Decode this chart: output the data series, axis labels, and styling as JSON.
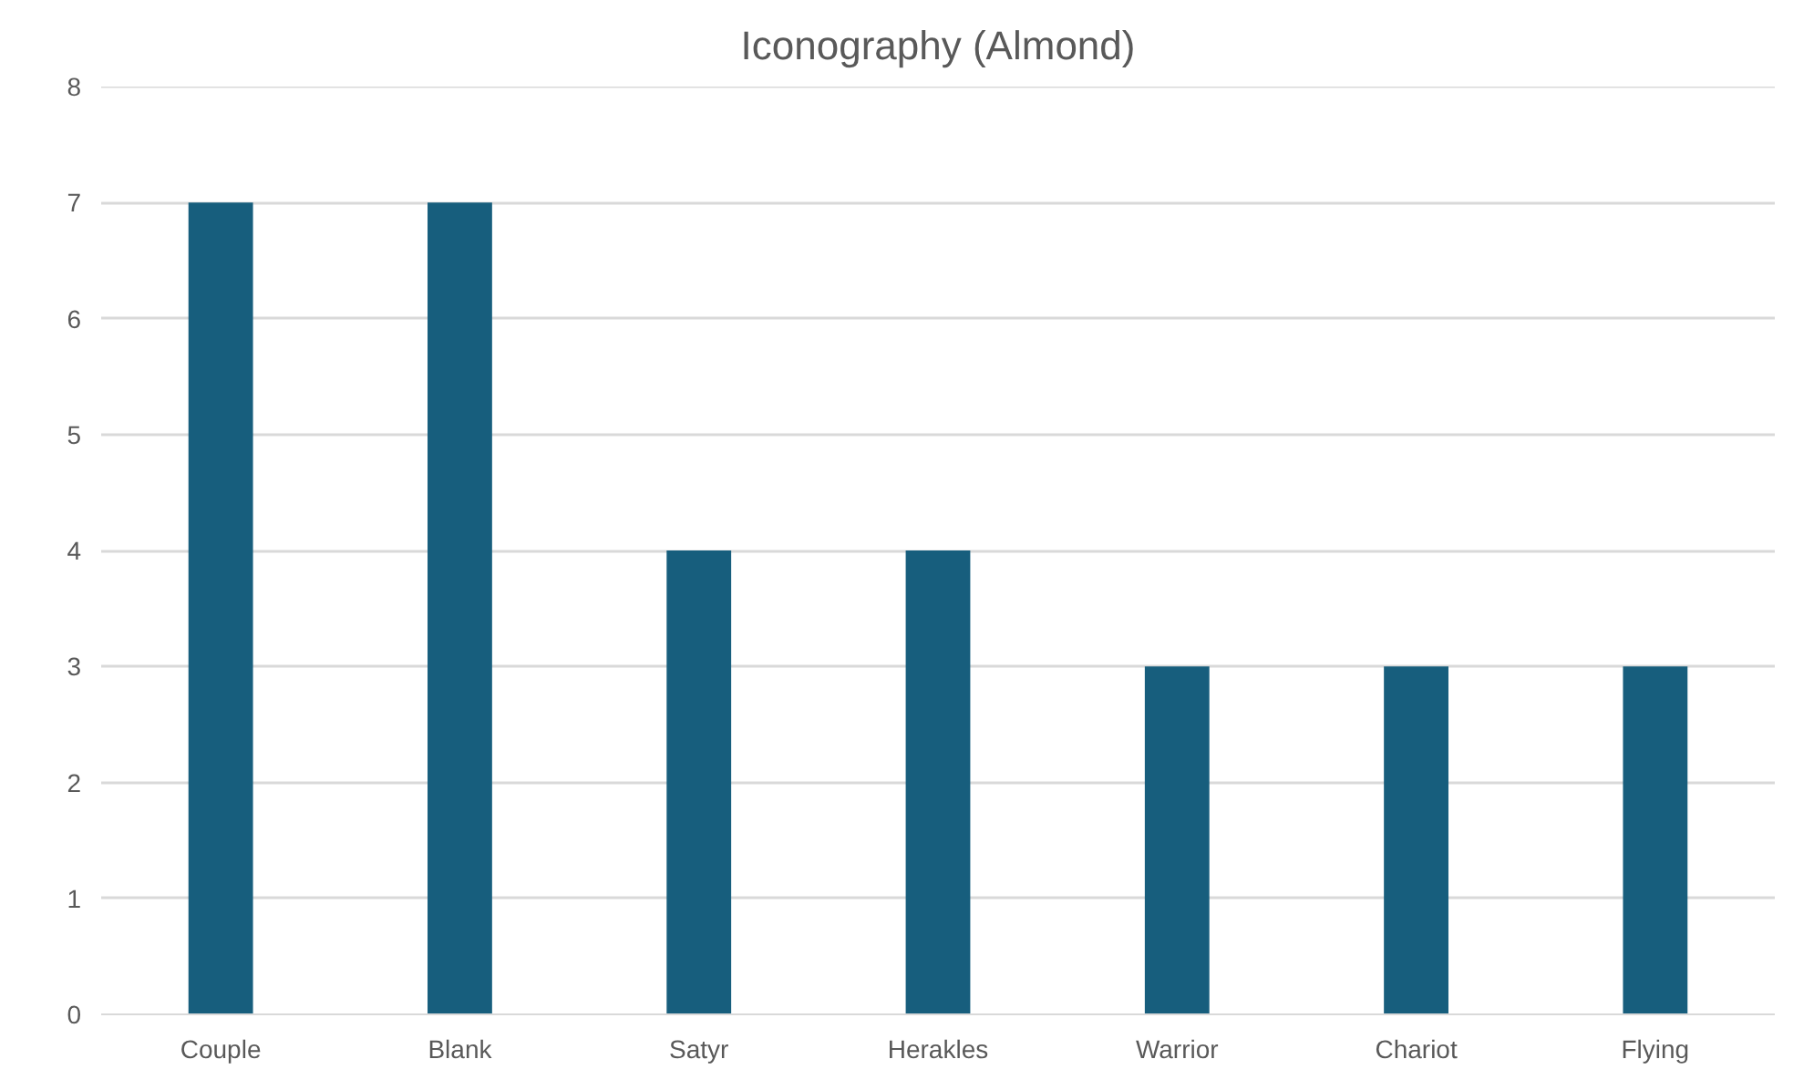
{
  "chart_data": {
    "type": "bar",
    "title": "Iconography (Almond)",
    "categories": [
      "Couple",
      "Blank",
      "Satyr",
      "Herakles",
      "Warrior",
      "Chariot",
      "Flying"
    ],
    "values": [
      7,
      7,
      4,
      4,
      3,
      3,
      3
    ],
    "color": "#175e7d",
    "ylim": [
      0,
      8
    ],
    "yticks": [
      0,
      1,
      2,
      3,
      4,
      5,
      6,
      7,
      8
    ],
    "grid": "y"
  }
}
